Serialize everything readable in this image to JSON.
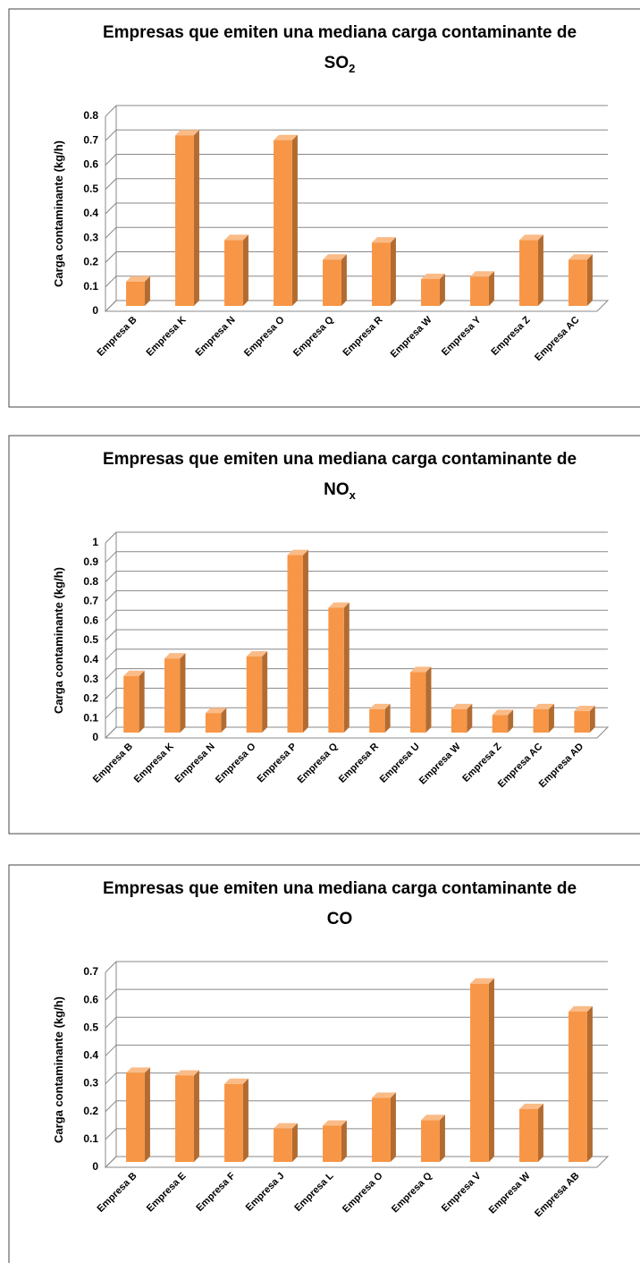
{
  "chart_data": [
    {
      "type": "bar3d",
      "title": "Empresas que emiten una mediana carga contaminante de",
      "title_formula": {
        "base": "SO",
        "subscript": "2"
      },
      "y_label": "Carga contaminante (kg/h)",
      "categories": [
        "Empresa B",
        "Empresa K",
        "Empresa N",
        "Empresa O",
        "Empresa Q",
        "Empresa R",
        "Empresa W",
        "Empresa Y",
        "Empresa Z",
        "Empresa AC"
      ],
      "values": [
        0.1,
        0.7,
        0.27,
        0.68,
        0.19,
        0.26,
        0.11,
        0.12,
        0.27,
        0.19
      ],
      "color": "#f79646",
      "ylim": [
        0,
        0.8
      ],
      "yticks": [
        0,
        0.1,
        0.2,
        0.3,
        0.4,
        0.5,
        0.6,
        0.7,
        0.8
      ],
      "grid": true
    },
    {
      "type": "bar3d",
      "title": "Empresas que emiten una mediana carga contaminante de",
      "title_formula": {
        "base": "NO",
        "subscript": "x"
      },
      "y_label": "Carga contaminante (kg/h)",
      "categories": [
        "Empresa B",
        "Empresa K",
        "Empresa N",
        "Empresa O",
        "Empresa P",
        "Empresa Q",
        "Empresa R",
        "Empresa U",
        "Empresa W",
        "Empresa Z",
        "Empresa AC",
        "Empresa AD"
      ],
      "values": [
        0.29,
        0.38,
        0.1,
        0.39,
        0.91,
        0.64,
        0.12,
        0.31,
        0.12,
        0.09,
        0.12,
        0.11
      ],
      "color": "#f79646",
      "ylim": [
        0,
        1
      ],
      "yticks": [
        0,
        0.1,
        0.2,
        0.3,
        0.4,
        0.5,
        0.6,
        0.7,
        0.8,
        0.9,
        1
      ],
      "grid": true
    },
    {
      "type": "bar3d",
      "title": "Empresas que emiten una mediana carga contaminante de",
      "title_formula": {
        "base": "CO"
      },
      "y_label": "Carga contaminante (kg/h)",
      "categories": [
        "Empresa B",
        "Empresa E",
        "Empresa F",
        "Empresa J",
        "Empresa L",
        "Empresa O",
        "Empresa Q",
        "Empresa V",
        "Empresa W",
        "Empresa AB"
      ],
      "values": [
        0.32,
        0.31,
        0.28,
        0.12,
        0.13,
        0.23,
        0.15,
        0.64,
        0.19,
        0.54
      ],
      "color": "#f79646",
      "ylim": [
        0,
        0.7
      ],
      "yticks": [
        0,
        0.1,
        0.2,
        0.3,
        0.4,
        0.5,
        0.6,
        0.7
      ],
      "grid": true
    }
  ]
}
